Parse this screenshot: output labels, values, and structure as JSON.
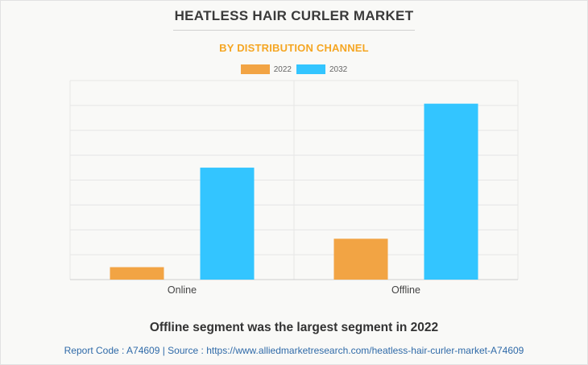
{
  "title": "HEATLESS HAIR CURLER MARKET",
  "subtitle": "BY DISTRIBUTION CHANNEL",
  "colors": {
    "series_2022": "#f2a444",
    "series_2032": "#33c5ff",
    "title": "#3a3a3a",
    "subtitle": "#f5a623",
    "footer": "#2f6aa8"
  },
  "chart_data": {
    "type": "bar",
    "categories": [
      "Online",
      "Offline"
    ],
    "series": [
      {
        "name": "2022",
        "values": [
          0.7,
          2.3
        ]
      },
      {
        "name": "2032",
        "values": [
          6.3,
          9.9
        ]
      }
    ],
    "ylim": [
      0,
      11.2
    ],
    "grid": true,
    "legend": "top-center",
    "xlabel": "",
    "ylabel": ""
  },
  "headline": "Offline segment was the largest segment in 2022",
  "footer": "Report Code : A74609  |  Source : https://www.alliedmarketresearch.com/heatless-hair-curler-market-A74609"
}
